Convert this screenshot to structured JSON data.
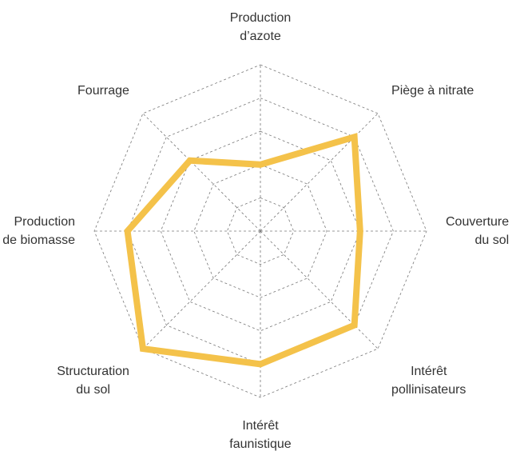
{
  "chart_data": {
    "type": "radar",
    "categories": [
      "Production\nd’azote",
      "Piège à nitrate",
      "Couverture\ndu sol",
      "Intérêt\npollinisateurs",
      "Intérêt\nfaunistique",
      "Structuration\ndu sol",
      "Production\nde biomasse",
      "Fourrage"
    ],
    "values": [
      2,
      4,
      3,
      4,
      4,
      5,
      4,
      3
    ],
    "color": "#f4c24a",
    "rlim": [
      0,
      5
    ],
    "rticks": [
      1,
      2,
      3,
      4,
      5
    ],
    "grid": true
  }
}
